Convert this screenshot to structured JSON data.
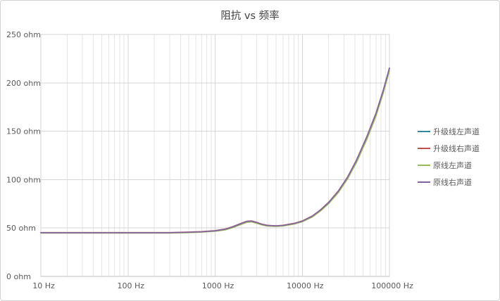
{
  "chart_data": {
    "type": "line",
    "title": "阻抗 vs 频率",
    "x_scale": "log",
    "xlim": [
      10,
      100000
    ],
    "ylim": [
      0,
      250
    ],
    "grid": {
      "major_color": "#d6d6d6",
      "minor_color": "#e6e6e6",
      "axis_color": "#bfbfbf",
      "log_minor": true
    },
    "legend_position": "right",
    "x_ticks": [
      {
        "value": 10,
        "label": "10 Hz"
      },
      {
        "value": 100,
        "label": "100 Hz"
      },
      {
        "value": 1000,
        "label": "1000 Hz"
      },
      {
        "value": 10000,
        "label": "10000 Hz"
      },
      {
        "value": 100000,
        "label": "100000 Hz"
      }
    ],
    "y_ticks": [
      {
        "value": 0,
        "label": "0 ohm"
      },
      {
        "value": 50,
        "label": "50 ohm"
      },
      {
        "value": 100,
        "label": "100 ohm"
      },
      {
        "value": 150,
        "label": "150 ohm"
      },
      {
        "value": 200,
        "label": "200 ohm"
      },
      {
        "value": 250,
        "label": "250 ohm"
      }
    ],
    "x": [
      10,
      15,
      20,
      30,
      50,
      70,
      100,
      150,
      200,
      300,
      500,
      700,
      1000,
      1300,
      1600,
      2000,
      2300,
      2600,
      3000,
      3500,
      4000,
      5000,
      6000,
      8000,
      10000,
      13000,
      16000,
      20000,
      26000,
      33000,
      42000,
      55000,
      70000,
      85000,
      100000
    ],
    "series": [
      {
        "name": "升级线左声道",
        "color": "#31859c",
        "values": [
          45,
          45,
          45,
          45,
          45,
          45,
          45,
          45,
          45,
          45,
          45.5,
          46,
          47,
          48.5,
          51,
          54.5,
          56.5,
          57,
          55.5,
          53.5,
          52.5,
          52,
          52.5,
          54.5,
          57,
          62,
          68,
          76,
          88,
          102,
          120,
          144,
          168,
          192,
          215
        ]
      },
      {
        "name": "升级线右声道",
        "color": "#c0504d",
        "values": [
          45.3,
          45.3,
          45.3,
          45.3,
          45.3,
          45.3,
          45.3,
          45.3,
          45.3,
          45.3,
          45.8,
          46.3,
          47.3,
          48.9,
          51.5,
          55,
          57,
          57.4,
          55.9,
          53.8,
          52.8,
          52.3,
          52.8,
          54.8,
          57.3,
          62.4,
          68.4,
          76.5,
          88.5,
          102.6,
          120.5,
          144.5,
          168.6,
          192.5,
          215.4
        ]
      },
      {
        "name": "原线左声道",
        "color": "#9bbb59",
        "values": [
          44.7,
          44.7,
          44.7,
          44.7,
          44.7,
          44.7,
          44.7,
          44.7,
          44.7,
          44.7,
          45.2,
          45.7,
          46.6,
          48,
          50.4,
          53.8,
          55.8,
          56.3,
          54.9,
          53,
          52,
          51.6,
          52.1,
          54,
          56.4,
          61.3,
          67.2,
          75,
          86.8,
          100.5,
          118,
          141.5,
          165.5,
          189.5,
          212.5
        ]
      },
      {
        "name": "原线右声道",
        "color": "#8064a2",
        "values": [
          45.1,
          45.1,
          45.1,
          45.1,
          45.1,
          45.1,
          45.1,
          45.1,
          45.1,
          45.1,
          45.6,
          46.1,
          47.1,
          48.7,
          51.2,
          54.7,
          56.7,
          57.2,
          55.7,
          53.6,
          52.6,
          52.2,
          52.6,
          54.6,
          57.1,
          62.2,
          68.2,
          76.2,
          88.2,
          102.3,
          120.2,
          144.2,
          168.2,
          192.2,
          215.2
        ]
      }
    ]
  }
}
